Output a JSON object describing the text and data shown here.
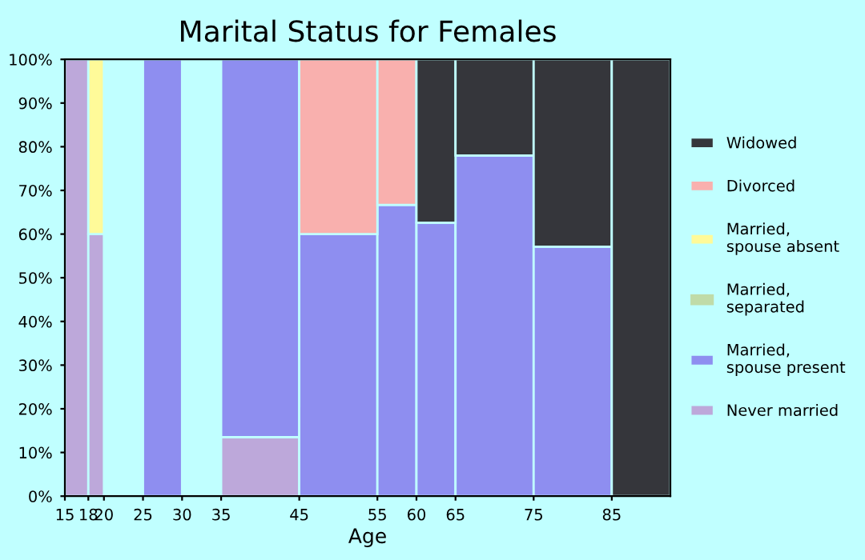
{
  "chart_data": {
    "type": "bar",
    "stacked": true,
    "title": "Marital Status for Females",
    "xlabel": "Age",
    "x": [
      16.5,
      19,
      22.5,
      27.5,
      32.5,
      40,
      50,
      57.5,
      62.5,
      70,
      80,
      88.75
    ],
    "xlim": [
      15,
      92.5
    ],
    "xticks": [
      15,
      18,
      20,
      25,
      30,
      35,
      45,
      55,
      60,
      65,
      75,
      85
    ],
    "ylim": [
      0,
      100
    ],
    "yticks": [
      {
        "value": 0,
        "label": "0%"
      },
      {
        "value": 10,
        "label": "10%"
      },
      {
        "value": 20,
        "label": "20%"
      },
      {
        "value": 30,
        "label": "30%"
      },
      {
        "value": 40,
        "label": "40%"
      },
      {
        "value": 50,
        "label": "50%"
      },
      {
        "value": 60,
        "label": "60%"
      },
      {
        "value": 70,
        "label": "70%"
      },
      {
        "value": 80,
        "label": "80%"
      },
      {
        "value": 90,
        "label": "90%"
      },
      {
        "value": 100,
        "label": "100%"
      }
    ],
    "series": [
      {
        "name": "Never married",
        "color": "#bda8da",
        "values": [
          100,
          60,
          null,
          null,
          null,
          13.5,
          null,
          null,
          null,
          null,
          null,
          null
        ]
      },
      {
        "name": "Married, spouse present",
        "color": "#8e8ef0",
        "values": [
          null,
          null,
          null,
          100,
          null,
          86.5,
          60,
          66.7,
          62.6,
          78,
          57.1,
          null
        ]
      },
      {
        "name": "Married, separated",
        "color": "#c0dba8",
        "values": [
          null,
          null,
          null,
          null,
          null,
          null,
          null,
          null,
          null,
          null,
          null,
          null
        ]
      },
      {
        "name": "Married, spouse absent",
        "color": "#fffa99",
        "values": [
          null,
          40,
          null,
          null,
          null,
          null,
          null,
          null,
          null,
          null,
          null,
          null
        ]
      },
      {
        "name": "Divorced",
        "color": "#f9b0ae",
        "values": [
          null,
          null,
          null,
          null,
          null,
          null,
          40,
          33.3,
          null,
          null,
          null,
          null
        ]
      },
      {
        "name": "Widowed",
        "color": "#35363b",
        "values": [
          null,
          null,
          null,
          null,
          null,
          null,
          null,
          null,
          37.4,
          22,
          42.9,
          100
        ]
      }
    ],
    "legend": "right",
    "grid": false
  }
}
